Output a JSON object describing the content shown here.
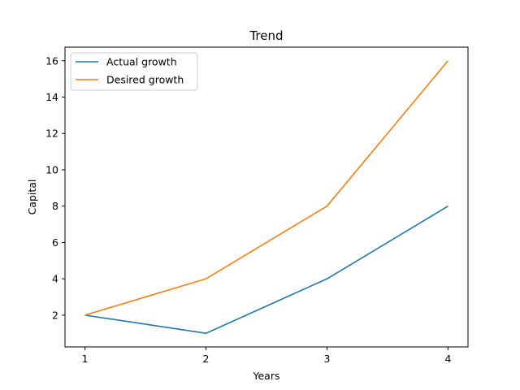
{
  "chart_data": {
    "type": "line",
    "title": "Trend",
    "xlabel": "Years",
    "ylabel": "Capital",
    "x": [
      1,
      2,
      3,
      4
    ],
    "series": [
      {
        "name": "Actual growth",
        "values": [
          2,
          1,
          4,
          8
        ],
        "color": "#1f77b4"
      },
      {
        "name": "Desired growth",
        "values": [
          2,
          4,
          8,
          16
        ],
        "color": "#ff7f0e"
      }
    ],
    "xlim": [
      0.835,
      4.165
    ],
    "ylim": [
      0.25,
      16.75
    ],
    "xticks": [
      1,
      2,
      3,
      4
    ],
    "xtick_labels": [
      "1",
      "2",
      "3",
      "4"
    ],
    "yticks": [
      2,
      4,
      6,
      8,
      10,
      12,
      14,
      16
    ],
    "ytick_labels": [
      "2",
      "4",
      "6",
      "8",
      "10",
      "12",
      "14",
      "16"
    ],
    "grid": false,
    "legend_position": "top-left"
  }
}
